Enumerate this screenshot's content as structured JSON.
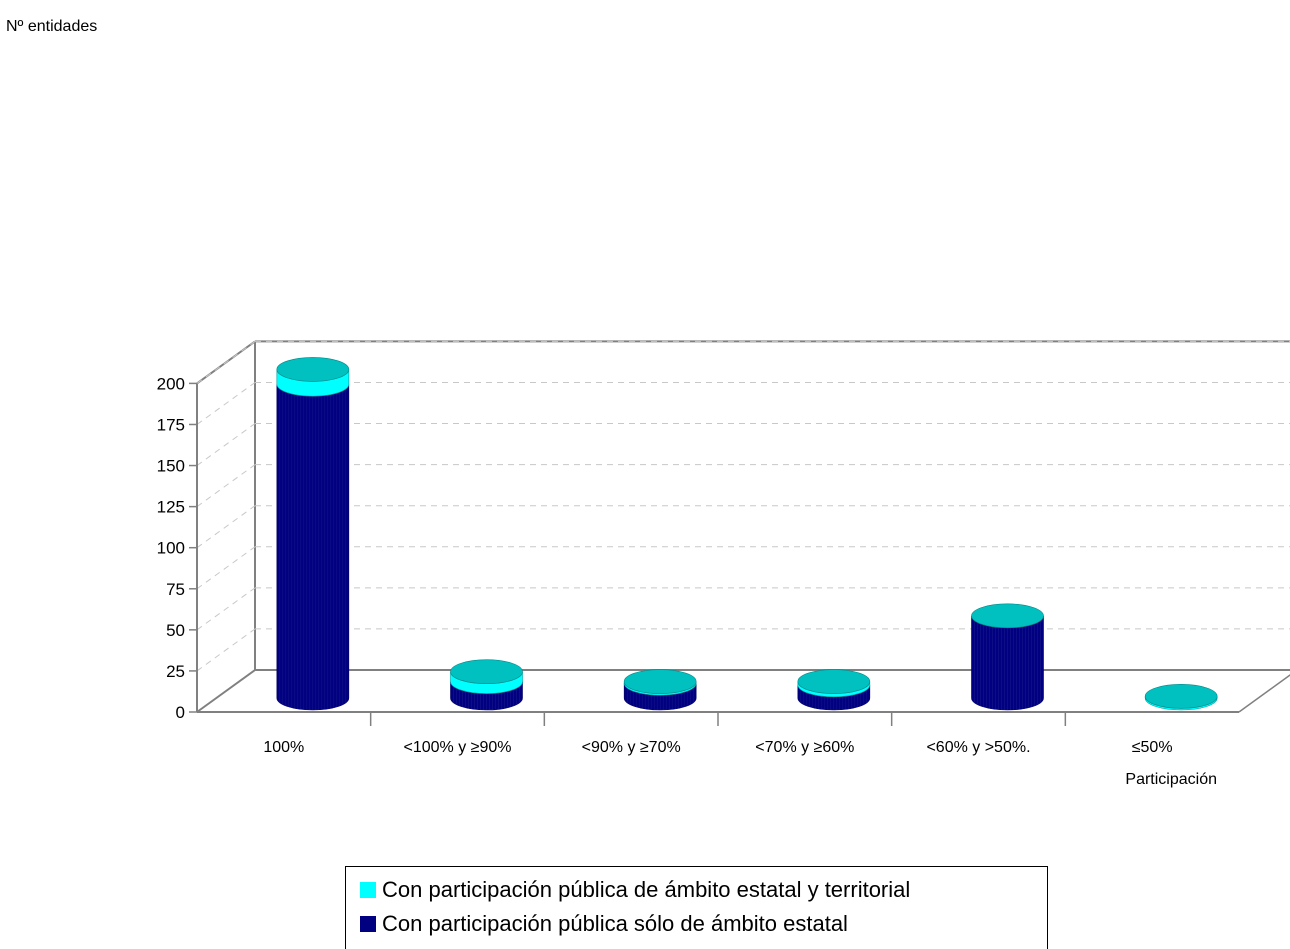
{
  "chart_data": {
    "type": "bar",
    "stacked": true,
    "three_d": true,
    "ylabel": "Nº entidades",
    "xlabel": "Participación",
    "ylim": [
      0,
      200
    ],
    "yticks": [
      0,
      25,
      50,
      75,
      100,
      125,
      150,
      175,
      200
    ],
    "grid": true,
    "categories": [
      "100%",
      "<100% y ≥90%",
      "<90% y ≥70%",
      "<70% y ≥60%",
      "<60% y >50%.",
      "≤50%"
    ],
    "series": [
      {
        "name": "Con participación pública sólo de ámbito estatal",
        "values": [
          191,
          10,
          9,
          8,
          50,
          0
        ],
        "color": "#000080",
        "top_color": "#1a1a9e"
      },
      {
        "name": "Con participación pública de ámbito estatal y territorial",
        "values": [
          9,
          6,
          1,
          2,
          0,
          1
        ],
        "color": "#00FFFF",
        "top_color": "#00c0c0"
      }
    ]
  },
  "legend": {
    "items": [
      {
        "label": "Con participación pública de ámbito estatal y territorial",
        "color": "#00FFFF"
      },
      {
        "label": "Con participación pública sólo de ámbito estatal",
        "color": "#000080"
      }
    ]
  }
}
